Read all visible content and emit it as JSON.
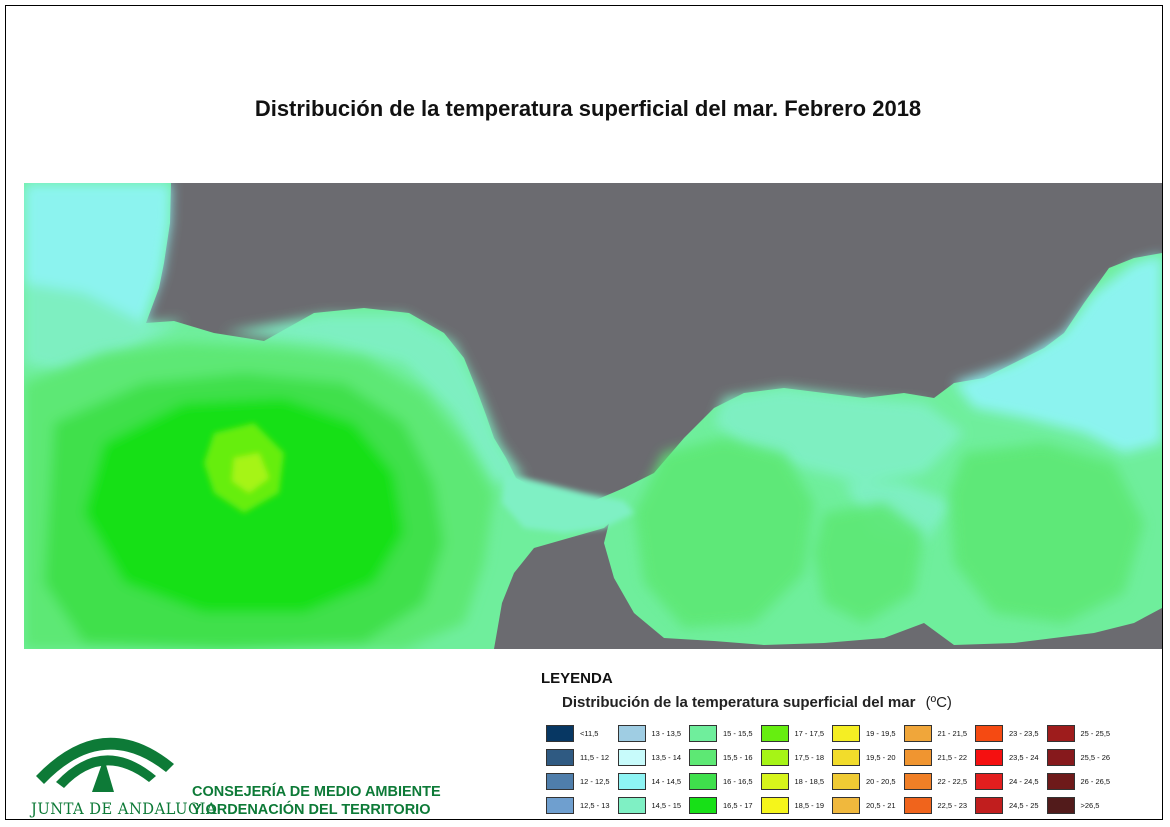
{
  "title": "Distribución de la temperatura superficial del mar. Febrero 2018",
  "legend": {
    "heading": "LEYENDA",
    "subtitle": "Distribución de la temperatura superficial del mar",
    "unit": "(ºC)",
    "items": [
      {
        "label": "<11,5",
        "color": "#073763"
      },
      {
        "label": "11,5 - 12",
        "color": "#2f5a82"
      },
      {
        "label": "12 - 12,5",
        "color": "#4f7eab"
      },
      {
        "label": "12,5 - 13",
        "color": "#6f9fcf"
      },
      {
        "label": "13 - 13,5",
        "color": "#9fcde3"
      },
      {
        "label": "13,5 - 14",
        "color": "#c8fbfb"
      },
      {
        "label": "14 - 14,5",
        "color": "#8ef4f4"
      },
      {
        "label": "14,5 - 15",
        "color": "#7ff0c4"
      },
      {
        "label": "15 - 15,5",
        "color": "#6fee9c"
      },
      {
        "label": "15,5 - 16",
        "color": "#5de874"
      },
      {
        "label": "16 - 16,5",
        "color": "#3fe04c"
      },
      {
        "label": "16,5 - 17",
        "color": "#17e017"
      },
      {
        "label": "17 - 17,5",
        "color": "#66ee10"
      },
      {
        "label": "17,5 - 18",
        "color": "#a6f416"
      },
      {
        "label": "18 - 18,5",
        "color": "#d7f51b"
      },
      {
        "label": "18,5 - 19",
        "color": "#f5f51b"
      },
      {
        "label": "19 - 19,5",
        "color": "#f5ee23"
      },
      {
        "label": "19,5 - 20",
        "color": "#f2dc2b"
      },
      {
        "label": "20 - 20,5",
        "color": "#f0cb34"
      },
      {
        "label": "20,5 - 21",
        "color": "#f0b83d"
      },
      {
        "label": "21 - 21,5",
        "color": "#f0a63a"
      },
      {
        "label": "21,5 - 22",
        "color": "#f09530"
      },
      {
        "label": "22 - 22,5",
        "color": "#f07f26"
      },
      {
        "label": "22,5 - 23",
        "color": "#f0641c"
      },
      {
        "label": "23 - 23,5",
        "color": "#f54a12"
      },
      {
        "label": "23,5 - 24",
        "color": "#f51010"
      },
      {
        "label": "24 - 24,5",
        "color": "#e21e1e"
      },
      {
        "label": "24,5 - 25",
        "color": "#c11e1e"
      },
      {
        "label": "25 - 25,5",
        "color": "#9e1c1c"
      },
      {
        "label": "25,5 - 26",
        "color": "#86191c"
      },
      {
        "label": "26 - 26,5",
        "color": "#6e1a1a"
      },
      {
        "label": ">26,5",
        "color": "#521b1b"
      }
    ]
  },
  "logo": {
    "text": "JUNTA DE ANDALUCIA"
  },
  "institution": {
    "line1": "CONSEJERÍA DE MEDIO AMBIENTE",
    "line2": "Y ORDENACIÓN DEL TERRITORIO"
  },
  "map": {
    "land_color": "#6b6b70"
  }
}
